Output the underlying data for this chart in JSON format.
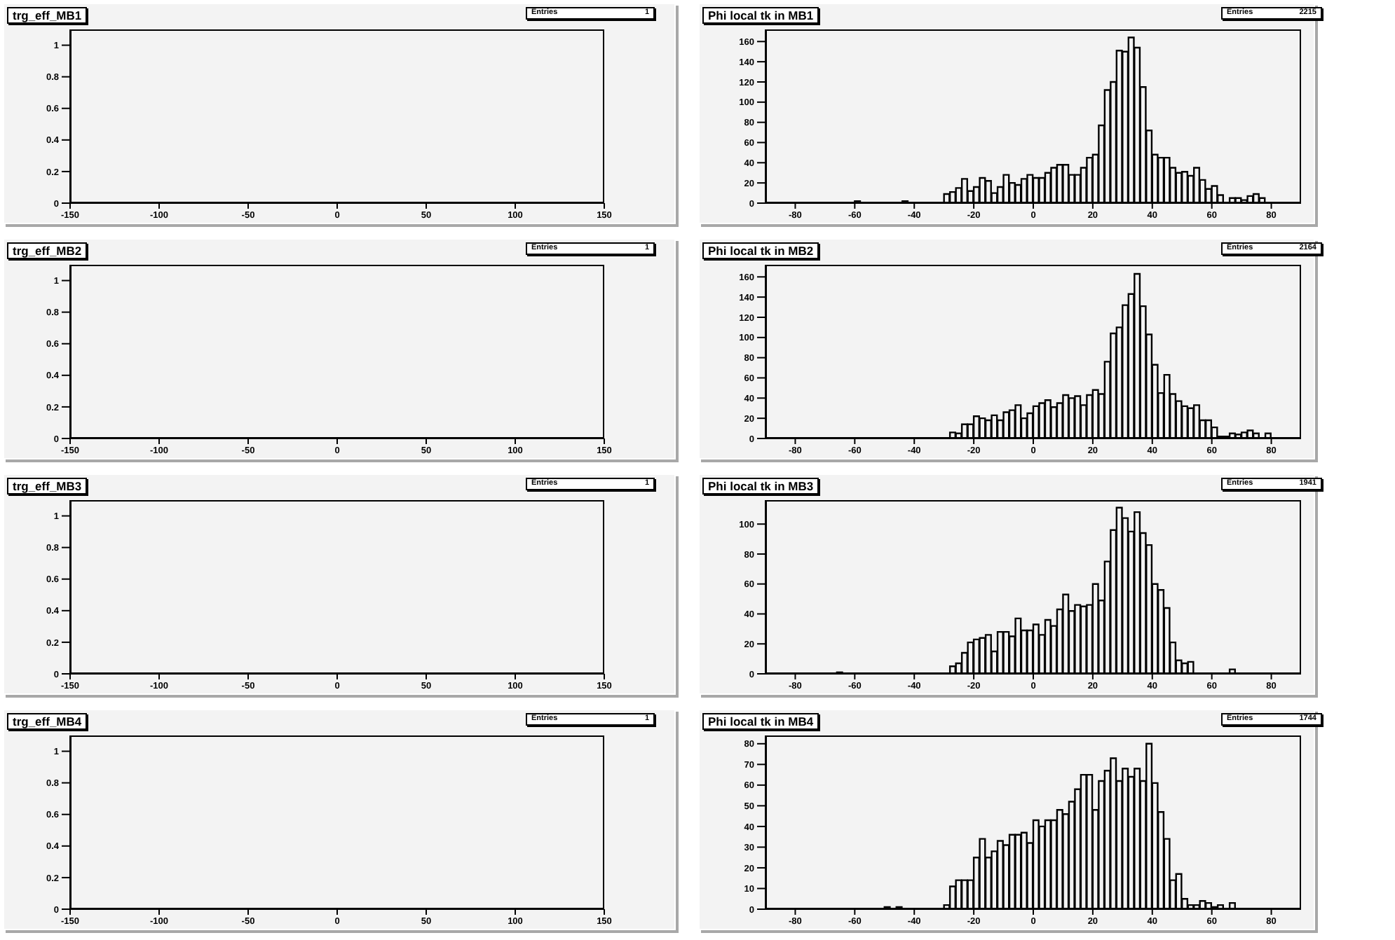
{
  "chart_data": [
    {
      "type": "histogram",
      "title": "trg_eff_MB1",
      "xlim": [
        -150,
        150
      ],
      "xticks": [
        -150,
        -100,
        -50,
        0,
        50,
        100,
        150
      ],
      "ylim": [
        0,
        1.1
      ],
      "yticks": [
        0,
        0.2,
        0.4,
        0.6,
        0.8,
        1
      ],
      "annotations": [
        "Entries",
        "1"
      ]
    },
    {
      "type": "histogram",
      "title": "Phi local tk in MB1",
      "color": "#000000",
      "xlim": [
        -90,
        90
      ],
      "xticks": [
        -80,
        -60,
        -40,
        -20,
        0,
        20,
        40,
        60,
        80
      ],
      "ylim": [
        0,
        172
      ],
      "yticks": [
        0,
        20,
        40,
        60,
        80,
        100,
        120,
        140,
        160
      ],
      "annotations": [
        "Entries",
        "2215"
      ],
      "bins": [
        -90,
        -88,
        -86,
        -84,
        -82,
        -80,
        -78,
        -76,
        -74,
        -72,
        -70,
        -68,
        -66,
        -64,
        -62,
        -60,
        -58,
        -56,
        -54,
        -52,
        -50,
        -48,
        -46,
        -44,
        -42,
        -40,
        -38,
        -36,
        -34,
        -32,
        -30,
        -28,
        -26,
        -24,
        -22,
        -20,
        -18,
        -16,
        -14,
        -12,
        -10,
        -8,
        -6,
        -4,
        -2,
        0,
        2,
        4,
        6,
        8,
        10,
        12,
        14,
        16,
        18,
        20,
        22,
        24,
        26,
        28,
        30,
        32,
        34,
        36,
        38,
        40,
        42,
        44,
        46,
        48,
        50,
        52,
        54,
        56,
        58,
        60,
        62,
        64,
        66,
        68,
        70,
        72,
        74,
        76,
        78,
        80,
        82,
        84,
        86,
        88,
        90
      ],
      "values": [
        0,
        0,
        0,
        0,
        0,
        0,
        0,
        0,
        0,
        0,
        0,
        0,
        0,
        0,
        0,
        2,
        0,
        0,
        0,
        0,
        0,
        0,
        0,
        2,
        0,
        0,
        0,
        0,
        0,
        0,
        9,
        11,
        15,
        24,
        12,
        16,
        25,
        22,
        10,
        16,
        28,
        20,
        18,
        24,
        28,
        25,
        25,
        30,
        35,
        38,
        38,
        28,
        28,
        35,
        45,
        48,
        77,
        112,
        120,
        151,
        150,
        164,
        154,
        115,
        72,
        48,
        45,
        45,
        35,
        30,
        31,
        27,
        35,
        23,
        14,
        17,
        8,
        0,
        5,
        5,
        3,
        7,
        9,
        5,
        0,
        0,
        0,
        0,
        0,
        0
      ]
    },
    {
      "type": "histogram",
      "title": "trg_eff_MB2",
      "xlim": [
        -150,
        150
      ],
      "xticks": [
        -150,
        -100,
        -50,
        0,
        50,
        100,
        150
      ],
      "ylim": [
        0,
        1.1
      ],
      "yticks": [
        0,
        0.2,
        0.4,
        0.6,
        0.8,
        1
      ],
      "annotations": [
        "Entries",
        "1"
      ]
    },
    {
      "type": "histogram",
      "title": "Phi local tk in MB2",
      "color": "#000000",
      "xlim": [
        -90,
        90
      ],
      "xticks": [
        -80,
        -60,
        -40,
        -20,
        0,
        20,
        40,
        60,
        80
      ],
      "ylim": [
        0,
        172
      ],
      "yticks": [
        0,
        20,
        40,
        60,
        80,
        100,
        120,
        140,
        160
      ],
      "annotations": [
        "Entries",
        "2164"
      ],
      "bins": [
        -90,
        -88,
        -86,
        -84,
        -82,
        -80,
        -78,
        -76,
        -74,
        -72,
        -70,
        -68,
        -66,
        -64,
        -62,
        -60,
        -58,
        -56,
        -54,
        -52,
        -50,
        -48,
        -46,
        -44,
        -42,
        -40,
        -38,
        -36,
        -34,
        -32,
        -30,
        -28,
        -26,
        -24,
        -22,
        -20,
        -18,
        -16,
        -14,
        -12,
        -10,
        -8,
        -6,
        -4,
        -2,
        0,
        2,
        4,
        6,
        8,
        10,
        12,
        14,
        16,
        18,
        20,
        22,
        24,
        26,
        28,
        30,
        32,
        34,
        36,
        38,
        40,
        42,
        44,
        46,
        48,
        50,
        52,
        54,
        56,
        58,
        60,
        62,
        64,
        66,
        68,
        70,
        72,
        74,
        76,
        78,
        80,
        82,
        84,
        86,
        88,
        90
      ],
      "values": [
        0,
        0,
        0,
        0,
        0,
        0,
        0,
        0,
        0,
        0,
        0,
        0,
        0,
        0,
        0,
        0,
        0,
        0,
        0,
        0,
        0,
        0,
        0,
        0,
        0,
        0,
        0,
        0,
        0,
        0,
        0,
        6,
        5,
        14,
        14,
        22,
        20,
        18,
        23,
        18,
        26,
        28,
        33,
        20,
        25,
        32,
        35,
        38,
        31,
        35,
        43,
        40,
        42,
        33,
        43,
        48,
        44,
        76,
        104,
        110,
        132,
        143,
        163,
        131,
        103,
        73,
        45,
        63,
        44,
        37,
        32,
        30,
        33,
        18,
        18,
        11,
        2,
        2,
        5,
        4,
        6,
        8,
        5,
        0,
        5,
        0,
        0,
        0,
        0,
        0
      ]
    },
    {
      "type": "histogram",
      "title": "trg_eff_MB3",
      "xlim": [
        -150,
        150
      ],
      "xticks": [
        -150,
        -100,
        -50,
        0,
        50,
        100,
        150
      ],
      "ylim": [
        0,
        1.1
      ],
      "yticks": [
        0,
        0.2,
        0.4,
        0.6,
        0.8,
        1
      ],
      "annotations": [
        "Entries",
        "1"
      ]
    },
    {
      "type": "histogram",
      "title": "Phi local tk in MB3",
      "color": "#000000",
      "xlim": [
        -90,
        90
      ],
      "xticks": [
        -80,
        -60,
        -40,
        -20,
        0,
        20,
        40,
        60,
        80
      ],
      "ylim": [
        0,
        116
      ],
      "yticks": [
        0,
        20,
        40,
        60,
        80,
        100
      ],
      "annotations": [
        "Entries",
        "1941"
      ],
      "bins": [
        -90,
        -88,
        -86,
        -84,
        -82,
        -80,
        -78,
        -76,
        -74,
        -72,
        -70,
        -68,
        -66,
        -64,
        -62,
        -60,
        -58,
        -56,
        -54,
        -52,
        -50,
        -48,
        -46,
        -44,
        -42,
        -40,
        -38,
        -36,
        -34,
        -32,
        -30,
        -28,
        -26,
        -24,
        -22,
        -20,
        -18,
        -16,
        -14,
        -12,
        -10,
        -8,
        -6,
        -4,
        -2,
        0,
        2,
        4,
        6,
        8,
        10,
        12,
        14,
        16,
        18,
        20,
        22,
        24,
        26,
        28,
        30,
        32,
        34,
        36,
        38,
        40,
        42,
        44,
        46,
        48,
        50,
        52,
        54,
        56,
        58,
        60,
        62,
        64,
        66,
        68,
        70,
        72,
        74,
        76,
        78,
        80,
        82,
        84,
        86,
        88,
        90
      ],
      "values": [
        0,
        0,
        0,
        0,
        0,
        0,
        0,
        0,
        0,
        0,
        0,
        0,
        1,
        0,
        0,
        0,
        0,
        0,
        0,
        0,
        0,
        0,
        0,
        0,
        0,
        0,
        0,
        0,
        0,
        0,
        0,
        5,
        7,
        14,
        21,
        23,
        24,
        26,
        15,
        28,
        28,
        25,
        37,
        29,
        29,
        33,
        26,
        36,
        32,
        43,
        53,
        42,
        46,
        45,
        46,
        60,
        49,
        75,
        96,
        111,
        104,
        95,
        108,
        94,
        86,
        60,
        56,
        44,
        21,
        9,
        7,
        8,
        0,
        0,
        0,
        0,
        0,
        0,
        3,
        0,
        0,
        0,
        0,
        0,
        0,
        0,
        0,
        0,
        0,
        0
      ]
    },
    {
      "type": "histogram",
      "title": "trg_eff_MB4",
      "xlim": [
        -150,
        150
      ],
      "xticks": [
        -150,
        -100,
        -50,
        0,
        50,
        100,
        150
      ],
      "ylim": [
        0,
        1.1
      ],
      "yticks": [
        0,
        0.2,
        0.4,
        0.6,
        0.8,
        1
      ],
      "annotations": [
        "Entries",
        "1"
      ]
    },
    {
      "type": "histogram",
      "title": "Phi local tk in MB4",
      "color": "#000000",
      "xlim": [
        -90,
        90
      ],
      "xticks": [
        -80,
        -60,
        -40,
        -20,
        0,
        20,
        40,
        60,
        80
      ],
      "ylim": [
        0,
        84
      ],
      "yticks": [
        0,
        10,
        20,
        30,
        40,
        50,
        60,
        70,
        80
      ],
      "annotations": [
        "Entries",
        "1744"
      ],
      "bins": [
        -90,
        -88,
        -86,
        -84,
        -82,
        -80,
        -78,
        -76,
        -74,
        -72,
        -70,
        -68,
        -66,
        -64,
        -62,
        -60,
        -58,
        -56,
        -54,
        -52,
        -50,
        -48,
        -46,
        -44,
        -42,
        -40,
        -38,
        -36,
        -34,
        -32,
        -30,
        -28,
        -26,
        -24,
        -22,
        -20,
        -18,
        -16,
        -14,
        -12,
        -10,
        -8,
        -6,
        -4,
        -2,
        0,
        2,
        4,
        6,
        8,
        10,
        12,
        14,
        16,
        18,
        20,
        22,
        24,
        26,
        28,
        30,
        32,
        34,
        36,
        38,
        40,
        42,
        44,
        46,
        48,
        50,
        52,
        54,
        56,
        58,
        60,
        62,
        64,
        66,
        68,
        70,
        72,
        74,
        76,
        78,
        80,
        82,
        84,
        86,
        88,
        90
      ],
      "values": [
        0,
        0,
        0,
        0,
        0,
        0,
        0,
        0,
        0,
        0,
        0,
        0,
        0,
        0,
        0,
        0,
        0,
        0,
        0,
        0,
        1,
        0,
        1,
        0,
        0,
        0,
        0,
        0,
        0,
        0,
        2,
        11,
        14,
        14,
        14,
        25,
        34,
        25,
        28,
        33,
        31,
        36,
        36,
        37,
        32,
        43,
        40,
        43,
        43,
        48,
        46,
        52,
        58,
        65,
        65,
        48,
        62,
        67,
        73,
        62,
        68,
        64,
        68,
        62,
        80,
        61,
        47,
        34,
        14,
        17,
        5,
        2,
        2,
        4,
        3,
        1,
        2,
        0,
        3,
        0,
        0,
        0,
        0,
        0,
        0,
        0,
        0,
        0,
        0,
        0
      ]
    }
  ]
}
